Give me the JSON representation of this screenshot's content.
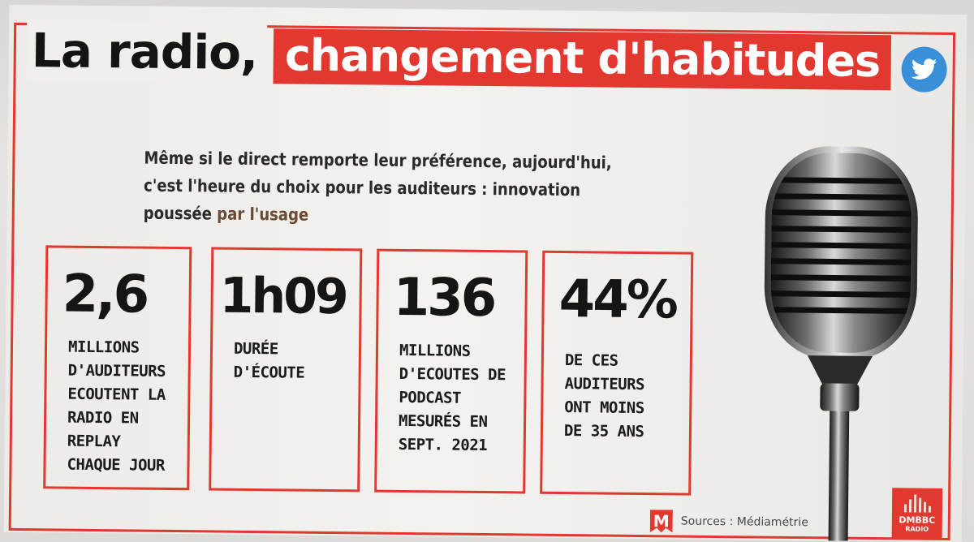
{
  "title": {
    "part1": "La radio,",
    "part2": "changement d'habitudes"
  },
  "subtitle": {
    "line_main": "Même si le direct remporte leur préférence, aujourd'hui, c'est l'heure du choix pour les auditeurs : innovation poussée",
    "line_highlight": "par l'usage"
  },
  "stats": [
    {
      "value": "2,6",
      "description": "MILLIONS\nD'AUDITEURS\nECOUTENT LA\nRADIO EN\nREPLAY\nCHAQUE JOUR"
    },
    {
      "value": "1h09",
      "description": "DURÉE\nD'ÉCOUTE"
    },
    {
      "value": "136",
      "description": "MILLIONS\nD'ECOUTES DE\nPODCAST\nMESURÉS EN\nSEPT. 2021"
    },
    {
      "value": "44%",
      "description": "DE CES\nAUDITEURS\nONT MOINS\nDE 35 ANS"
    }
  ],
  "footer": {
    "sources": "Sources : Médiamétrie",
    "brand_logo_letter": "M",
    "brand_name": "DMBBC",
    "brand_sub": "RADIO"
  },
  "icons": {
    "social": "twitter-bird-icon",
    "illustration": "microphone-icon"
  },
  "colors": {
    "accent": "#e2382f",
    "twitter": "#3a8fd9",
    "text": "#141414"
  }
}
